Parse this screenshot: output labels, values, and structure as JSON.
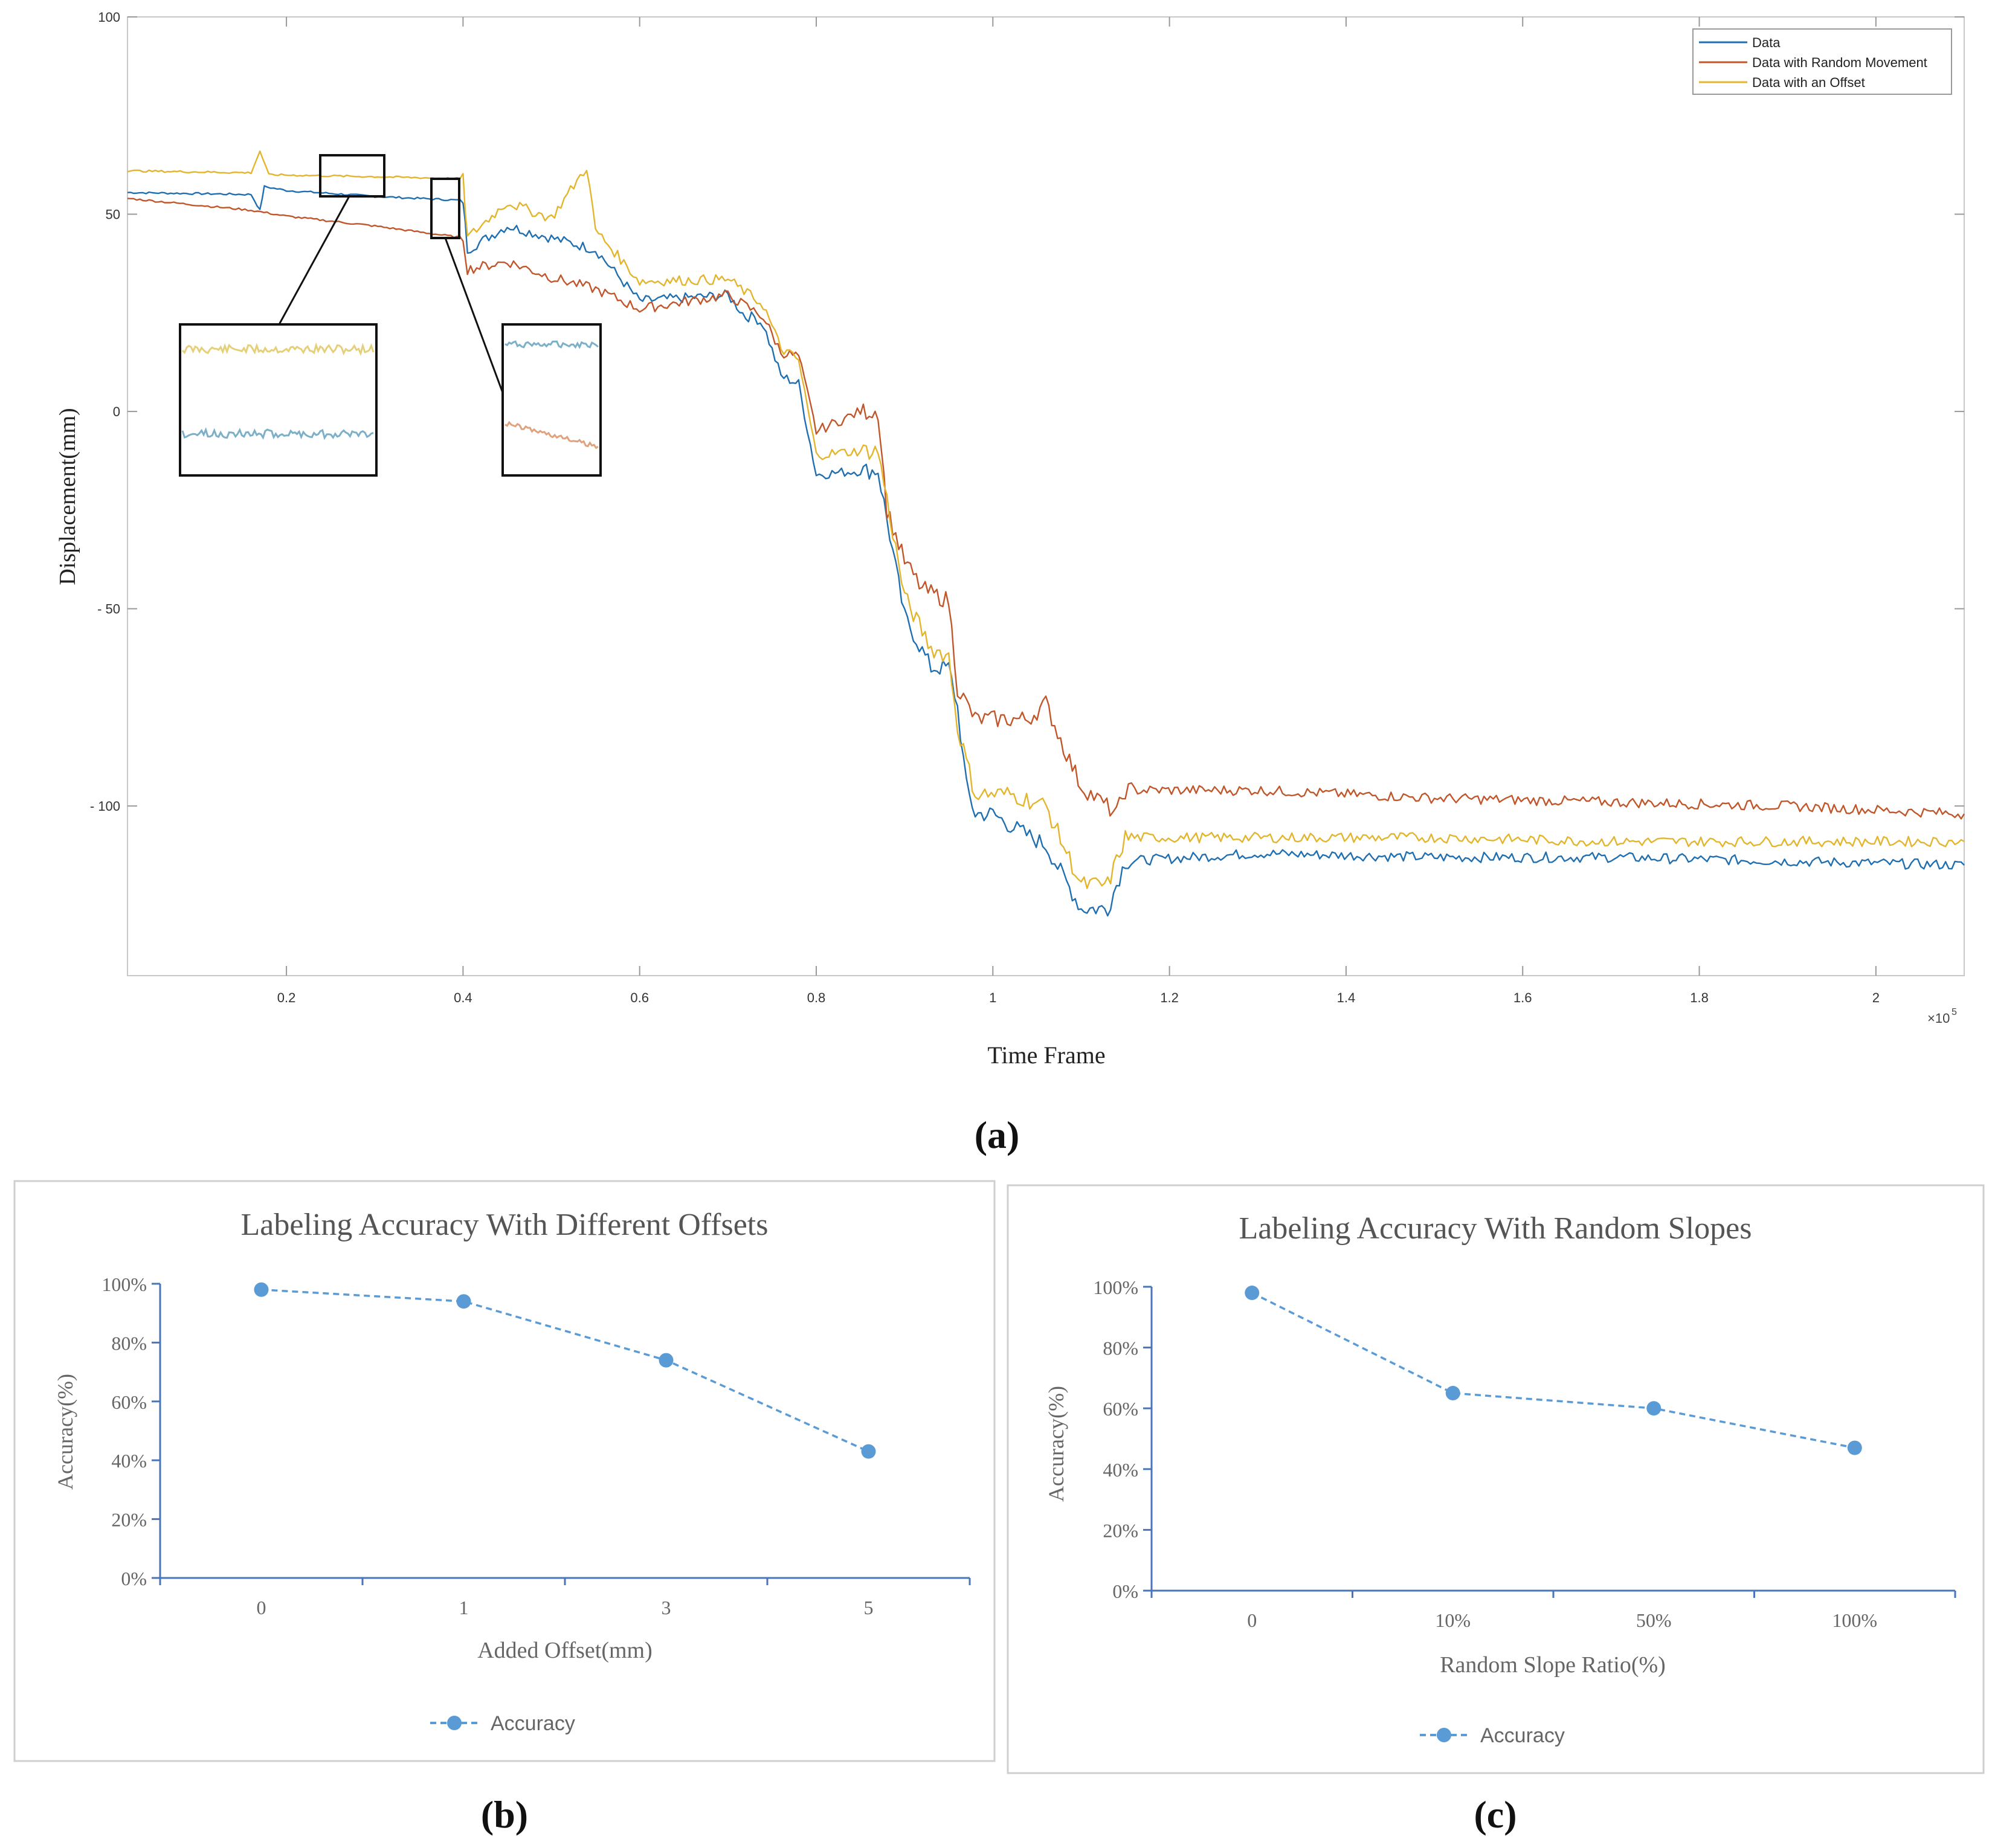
{
  "chart_data": [
    {
      "type": "line",
      "panel_label": "(a)",
      "xlabel": "Time Frame",
      "ylabel": "Displacement(mm)",
      "x_multiplier": "×10",
      "x_multiplier_exp": "5",
      "xlim": [
        0.02,
        2.1
      ],
      "ylim": [
        -143,
        100
      ],
      "x_ticks": [
        "0.2",
        "0.4",
        "0.6",
        "0.8",
        "1",
        "1.2",
        "1.4",
        "1.6",
        "1.8",
        "2"
      ],
      "y_ticks": [
        "100",
        "50",
        "0",
        "- 50",
        "- 100"
      ],
      "legend": {
        "position": "top-right",
        "entries": [
          "Data",
          "Data with Random Movement",
          "Data with an Offset"
        ]
      },
      "series": [
        {
          "name": "Data",
          "color": "#1f6fb0",
          "points": [
            [
              0.02,
              55.5
            ],
            [
              0.16,
              55
            ],
            [
              0.17,
              51
            ],
            [
              0.175,
              57
            ],
            [
              0.2,
              56
            ],
            [
              0.3,
              54.5
            ],
            [
              0.4,
              53.5
            ],
            [
              0.405,
              41
            ],
            [
              0.45,
              47
            ],
            [
              0.5,
              44
            ],
            [
              0.55,
              41
            ],
            [
              0.6,
              28
            ],
            [
              0.7,
              29.5
            ],
            [
              0.72,
              24
            ],
            [
              0.73,
              24
            ],
            [
              0.74,
              22
            ],
            [
              0.76,
              9
            ],
            [
              0.78,
              7
            ],
            [
              0.8,
              -16
            ],
            [
              0.85,
              -15
            ],
            [
              0.87,
              -15
            ],
            [
              0.9,
              -52
            ],
            [
              0.93,
              -65
            ],
            [
              0.95,
              -65
            ],
            [
              0.96,
              -75
            ],
            [
              0.97,
              -95
            ],
            [
              0.98,
              -102
            ],
            [
              1.0,
              -102
            ],
            [
              1.02,
              -105
            ],
            [
              1.06,
              -110
            ],
            [
              1.08,
              -118
            ],
            [
              1.1,
              -126
            ],
            [
              1.13,
              -126
            ],
            [
              1.15,
              -114
            ],
            [
              1.3,
              -112
            ],
            [
              1.5,
              -113
            ],
            [
              1.7,
              -113
            ],
            [
              1.9,
              -114
            ],
            [
              2.1,
              -115
            ]
          ]
        },
        {
          "name": "Data with Random Movement",
          "color": "#c0562a",
          "points": [
            [
              0.02,
              54
            ],
            [
              0.16,
              51
            ],
            [
              0.2,
              49.5
            ],
            [
              0.3,
              47
            ],
            [
              0.4,
              44
            ],
            [
              0.405,
              36
            ],
            [
              0.45,
              38
            ],
            [
              0.5,
              34
            ],
            [
              0.55,
              31
            ],
            [
              0.6,
              26
            ],
            [
              0.7,
              29.5
            ],
            [
              0.74,
              24
            ],
            [
              0.76,
              15
            ],
            [
              0.78,
              14
            ],
            [
              0.8,
              -5
            ],
            [
              0.85,
              0
            ],
            [
              0.87,
              0
            ],
            [
              0.88,
              -25
            ],
            [
              0.9,
              -38
            ],
            [
              0.92,
              -45
            ],
            [
              0.95,
              -48
            ],
            [
              0.96,
              -70
            ],
            [
              0.98,
              -78
            ],
            [
              1.02,
              -78
            ],
            [
              1.04,
              -78
            ],
            [
              1.06,
              -74
            ],
            [
              1.08,
              -85
            ],
            [
              1.1,
              -95
            ],
            [
              1.14,
              -102
            ],
            [
              1.15,
              -96
            ],
            [
              1.3,
              -96
            ],
            [
              1.5,
              -98
            ],
            [
              1.7,
              -99
            ],
            [
              1.9,
              -100
            ],
            [
              2.1,
              -102
            ]
          ]
        },
        {
          "name": "Data with an Offset",
          "color": "#e3b52c",
          "points": [
            [
              0.02,
              61
            ],
            [
              0.16,
              60.5
            ],
            [
              0.17,
              66
            ],
            [
              0.18,
              60
            ],
            [
              0.3,
              59.5
            ],
            [
              0.4,
              59
            ],
            [
              0.405,
              44
            ],
            [
              0.45,
              53
            ],
            [
              0.5,
              49
            ],
            [
              0.54,
              62
            ],
            [
              0.55,
              46
            ],
            [
              0.6,
              33
            ],
            [
              0.7,
              33.5
            ],
            [
              0.74,
              27
            ],
            [
              0.76,
              16
            ],
            [
              0.78,
              13
            ],
            [
              0.8,
              -11
            ],
            [
              0.85,
              -10
            ],
            [
              0.87,
              -10
            ],
            [
              0.9,
              -47
            ],
            [
              0.93,
              -60
            ],
            [
              0.95,
              -62
            ],
            [
              0.96,
              -80
            ],
            [
              0.98,
              -97
            ],
            [
              1.02,
              -97
            ],
            [
              1.06,
              -100
            ],
            [
              1.08,
              -110
            ],
            [
              1.1,
              -120
            ],
            [
              1.13,
              -120
            ],
            [
              1.15,
              -108
            ],
            [
              1.3,
              -108
            ],
            [
              1.5,
              -108
            ],
            [
              1.7,
              -109
            ],
            [
              1.9,
              -109
            ],
            [
              2.1,
              -109
            ]
          ]
        }
      ]
    },
    {
      "type": "line",
      "panel_label": "(b)",
      "title": "Labeling Accuracy With Different Offsets",
      "xlabel": "Added Offset(mm)",
      "ylabel": "Accuracy(%)",
      "categories": [
        "0",
        "1",
        "3",
        "5"
      ],
      "y_ticks": [
        "0%",
        "20%",
        "40%",
        "60%",
        "80%",
        "100%"
      ],
      "ylim": [
        0,
        100
      ],
      "legend": {
        "position": "bottom",
        "entries": [
          "Accuracy"
        ]
      },
      "series": [
        {
          "name": "Accuracy",
          "color": "#5b9bd5",
          "values": [
            98,
            94,
            74,
            43
          ]
        }
      ]
    },
    {
      "type": "line",
      "panel_label": "(c)",
      "title": "Labeling Accuracy With Random Slopes",
      "xlabel": "Random Slope Ratio(%)",
      "ylabel": "Accuracy(%)",
      "categories": [
        "0",
        "10%",
        "50%",
        "100%"
      ],
      "y_ticks": [
        "0%",
        "20%",
        "40%",
        "60%",
        "80%",
        "100%"
      ],
      "ylim": [
        0,
        100
      ],
      "legend": {
        "position": "bottom",
        "entries": [
          "Accuracy"
        ]
      },
      "series": [
        {
          "name": "Accuracy",
          "color": "#5b9bd5",
          "values": [
            98,
            65,
            60,
            47
          ]
        }
      ]
    }
  ]
}
